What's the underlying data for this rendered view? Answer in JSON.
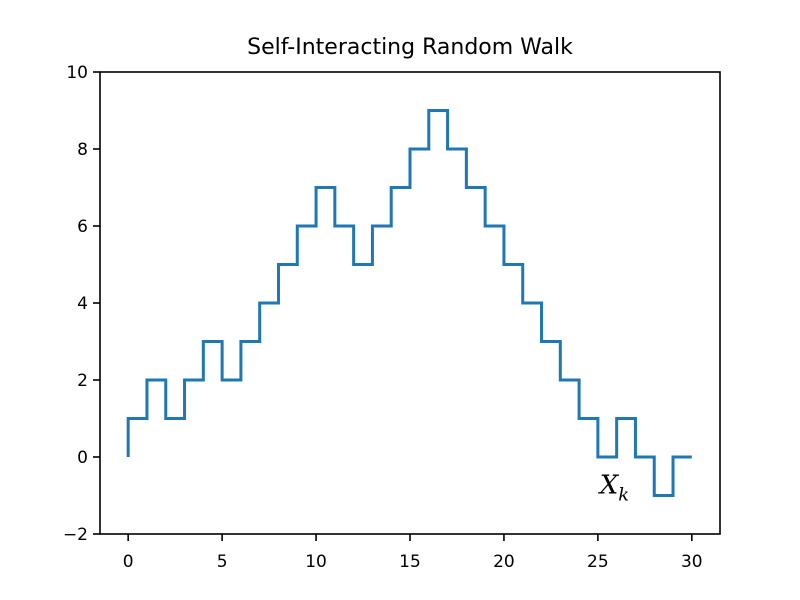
{
  "chart_data": {
    "type": "line",
    "title": "Self-Interacting Random Walk",
    "xlabel": "",
    "ylabel": "",
    "xlim": [
      -1.5,
      31.5
    ],
    "ylim": [
      -2,
      10
    ],
    "xticks": [
      0,
      5,
      10,
      15,
      20,
      25,
      30
    ],
    "yticks": [
      -2,
      0,
      2,
      4,
      6,
      8,
      10
    ],
    "ytick_labels": [
      "−2",
      "0",
      "2",
      "4",
      "6",
      "8",
      "10"
    ],
    "grid": false,
    "series": [
      {
        "color": "#1f77b4",
        "drawstyle": "steps-post",
        "x": [
          0,
          1,
          2,
          3,
          4,
          5,
          6,
          7,
          8,
          9,
          10,
          11,
          12,
          13,
          14,
          15,
          16,
          17,
          18,
          19,
          20,
          21,
          22,
          23,
          24,
          25,
          26,
          27,
          28,
          29,
          30
        ],
        "y": [
          1,
          2,
          1,
          2,
          3,
          2,
          3,
          4,
          5,
          6,
          7,
          6,
          5,
          6,
          7,
          8,
          9,
          8,
          7,
          6,
          5,
          4,
          3,
          2,
          1,
          0,
          1,
          0,
          -1,
          0,
          0
        ]
      }
    ],
    "annotation": {
      "base": "X",
      "subscript": "k",
      "x": 25.1,
      "y": -0.95
    }
  }
}
